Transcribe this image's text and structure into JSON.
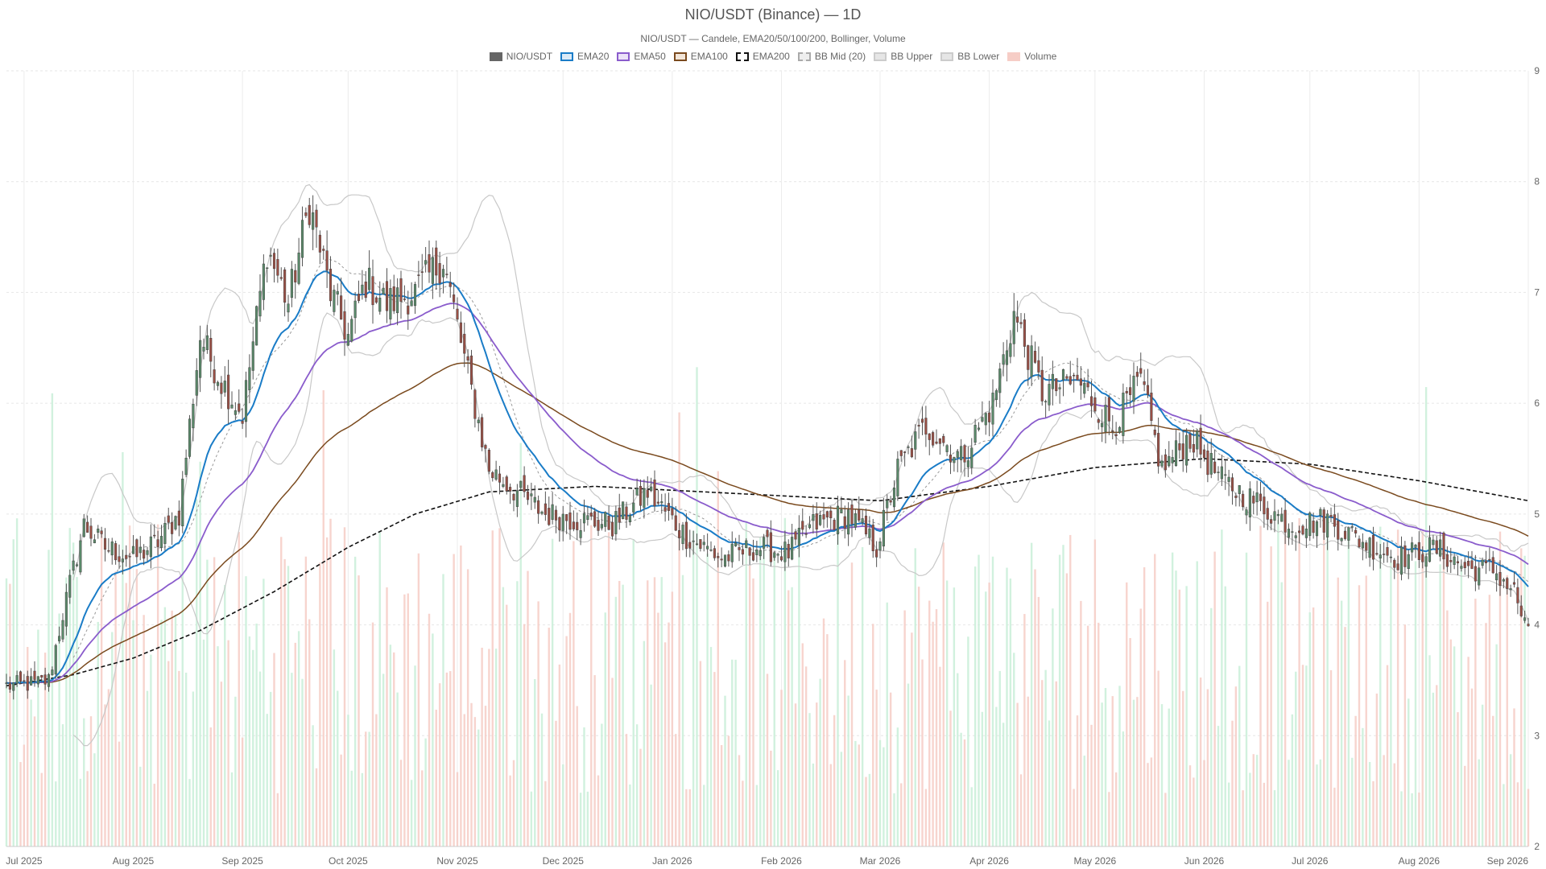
{
  "chart_data": {
    "type": "candlestick",
    "title": "NIO/USDT (Binance) — 1D",
    "subtitle": "NIO/USDT — Candele, EMA20/50/100/200, Bollinger, Volume",
    "legend": [
      {
        "label": "NIO/USDT",
        "fill": "#666666",
        "stroke": "#666666",
        "dash": false
      },
      {
        "label": "EMA20",
        "fill": "#dbeaf7",
        "stroke": "#1a7cc7",
        "dash": false
      },
      {
        "label": "EMA50",
        "fill": "#ece3f8",
        "stroke": "#8a5ccc",
        "dash": false
      },
      {
        "label": "EMA100",
        "fill": "#f3e6d9",
        "stroke": "#7a4a1e",
        "dash": false
      },
      {
        "label": "EMA200",
        "fill": "#ffffff",
        "stroke": "#111111",
        "dash": true
      },
      {
        "label": "BB Mid (20)",
        "fill": "#eeeeee",
        "stroke": "#aaaaaa",
        "dash": true
      },
      {
        "label": "BB Upper",
        "fill": "#e6e6e6",
        "stroke": "#cccccc",
        "dash": false
      },
      {
        "label": "BB Lower",
        "fill": "#e6e6e6",
        "stroke": "#cccccc",
        "dash": false
      },
      {
        "label": "Volume",
        "fill": "#f6cdc6",
        "stroke": "#f6cdc6",
        "dash": false
      }
    ],
    "y_ticks": [
      2,
      3,
      4,
      5,
      6,
      7,
      8,
      9
    ],
    "ylim": [
      2,
      9
    ],
    "x_ticks": [
      "Jul 2025",
      "Aug 2025",
      "Sep 2025",
      "Oct 2025",
      "Nov 2025",
      "Dec 2025",
      "Jan 2026",
      "Feb 2026",
      "Mar 2026",
      "Apr 2026",
      "May 2026",
      "Jun 2026",
      "Jul 2026",
      "Aug 2026",
      "Sep 2026"
    ],
    "x_start": "2025-06-26",
    "x_end": "2026-09-01",
    "close_anchors": [
      [
        "2025-06-26",
        3.45
      ],
      [
        "2025-07-04",
        3.47
      ],
      [
        "2025-07-08",
        3.5
      ],
      [
        "2025-07-12",
        4.1
      ],
      [
        "2025-07-18",
        4.9
      ],
      [
        "2025-07-24",
        4.7
      ],
      [
        "2025-08-01",
        4.6
      ],
      [
        "2025-08-08",
        4.75
      ],
      [
        "2025-08-14",
        5.0
      ],
      [
        "2025-08-20",
        6.6
      ],
      [
        "2025-08-26",
        6.2
      ],
      [
        "2025-09-01",
        5.9
      ],
      [
        "2025-09-08",
        7.4
      ],
      [
        "2025-09-14",
        6.9
      ],
      [
        "2025-09-20",
        7.8
      ],
      [
        "2025-09-26",
        7.0
      ],
      [
        "2025-10-01",
        6.6
      ],
      [
        "2025-10-06",
        7.1
      ],
      [
        "2025-10-12",
        6.9
      ],
      [
        "2025-10-20",
        7.0
      ],
      [
        "2025-10-28",
        7.3
      ],
      [
        "2025-11-03",
        6.4
      ],
      [
        "2025-11-10",
        5.4
      ],
      [
        "2025-11-18",
        5.2
      ],
      [
        "2025-11-26",
        5.0
      ],
      [
        "2025-12-05",
        4.95
      ],
      [
        "2025-12-15",
        4.9
      ],
      [
        "2025-12-25",
        5.2
      ],
      [
        "2026-01-05",
        4.8
      ],
      [
        "2026-01-15",
        4.6
      ],
      [
        "2026-01-25",
        4.7
      ],
      [
        "2026-02-03",
        4.65
      ],
      [
        "2026-02-10",
        4.9
      ],
      [
        "2026-02-20",
        5.0
      ],
      [
        "2026-02-28",
        4.7
      ],
      [
        "2026-03-06",
        5.4
      ],
      [
        "2026-03-14",
        5.8
      ],
      [
        "2026-03-24",
        5.5
      ],
      [
        "2026-04-02",
        6.0
      ],
      [
        "2026-04-08",
        6.8
      ],
      [
        "2026-04-16",
        6.1
      ],
      [
        "2026-04-26",
        6.2
      ],
      [
        "2026-05-06",
        5.8
      ],
      [
        "2026-05-14",
        6.2
      ],
      [
        "2026-05-20",
        5.4
      ],
      [
        "2026-05-28",
        5.7
      ],
      [
        "2026-06-06",
        5.3
      ],
      [
        "2026-06-16",
        5.1
      ],
      [
        "2026-06-26",
        4.9
      ],
      [
        "2026-07-06",
        4.95
      ],
      [
        "2026-07-16",
        4.75
      ],
      [
        "2026-07-26",
        4.6
      ],
      [
        "2026-08-05",
        4.7
      ],
      [
        "2026-08-15",
        4.5
      ],
      [
        "2026-08-22",
        4.5
      ],
      [
        "2026-08-28",
        4.3
      ],
      [
        "2026-09-01",
        3.9
      ]
    ],
    "ema200_anchors": [
      [
        "2025-06-26",
        3.45
      ],
      [
        "2025-07-15",
        3.55
      ],
      [
        "2025-08-01",
        3.7
      ],
      [
        "2025-08-20",
        3.95
      ],
      [
        "2025-09-10",
        4.3
      ],
      [
        "2025-10-01",
        4.7
      ],
      [
        "2025-10-20",
        5.0
      ],
      [
        "2025-11-10",
        5.2
      ],
      [
        "2025-12-10",
        5.25
      ],
      [
        "2026-01-10",
        5.2
      ],
      [
        "2026-02-10",
        5.15
      ],
      [
        "2026-03-01",
        5.12
      ],
      [
        "2026-04-01",
        5.25
      ],
      [
        "2026-05-01",
        5.42
      ],
      [
        "2026-06-01",
        5.5
      ],
      [
        "2026-07-01",
        5.45
      ],
      [
        "2026-08-01",
        5.3
      ],
      [
        "2026-09-01",
        5.12
      ]
    ]
  }
}
